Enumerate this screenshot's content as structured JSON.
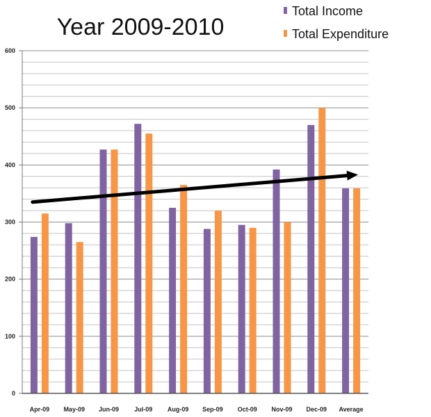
{
  "chart_data": {
    "type": "bar",
    "title": "Year 2009-2010",
    "xlabel": "",
    "ylabel": "",
    "categories": [
      "Apr-09",
      "May-09",
      "Jun-09",
      "Jul-09",
      "Aug-09",
      "Sep-09",
      "Oct-09",
      "Nov-09",
      "Dec-09",
      "Average"
    ],
    "series": [
      {
        "name": "Total Income",
        "color": "#8064a2",
        "values": [
          274,
          298,
          427,
          472,
          325,
          288,
          295,
          392,
          470,
          359
        ]
      },
      {
        "name": "Total Expenditure",
        "color": "#f79646",
        "values": [
          315,
          265,
          427,
          455,
          365,
          320,
          290,
          300,
          500,
          359
        ]
      }
    ],
    "ylim": [
      0,
      600
    ],
    "yticks": [
      0,
      100,
      200,
      300,
      400,
      500,
      600
    ],
    "minor_grid_step": 20,
    "grid": true,
    "legend": "top-right",
    "trend_arrow": {
      "from": {
        "category": "Apr-09",
        "value": 335
      },
      "to": {
        "category": "Average",
        "value": 383
      }
    }
  }
}
